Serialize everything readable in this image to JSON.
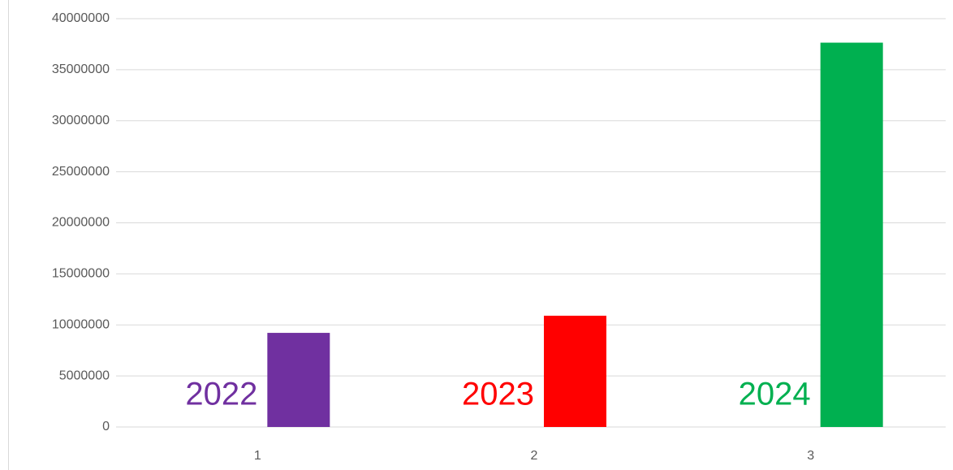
{
  "chart_data": {
    "type": "bar",
    "categories": [
      "1",
      "2",
      "3"
    ],
    "values": [
      9220000,
      10900000,
      37650000
    ],
    "colors": [
      "#7030a0",
      "#ff0000",
      "#00b050"
    ],
    "annotations": [
      "2022",
      "2023",
      "2024"
    ],
    "ylim": [
      0,
      40000000
    ],
    "yticks": [
      0,
      5000000,
      10000000,
      15000000,
      20000000,
      25000000,
      30000000,
      35000000,
      40000000
    ],
    "grid": true
  }
}
